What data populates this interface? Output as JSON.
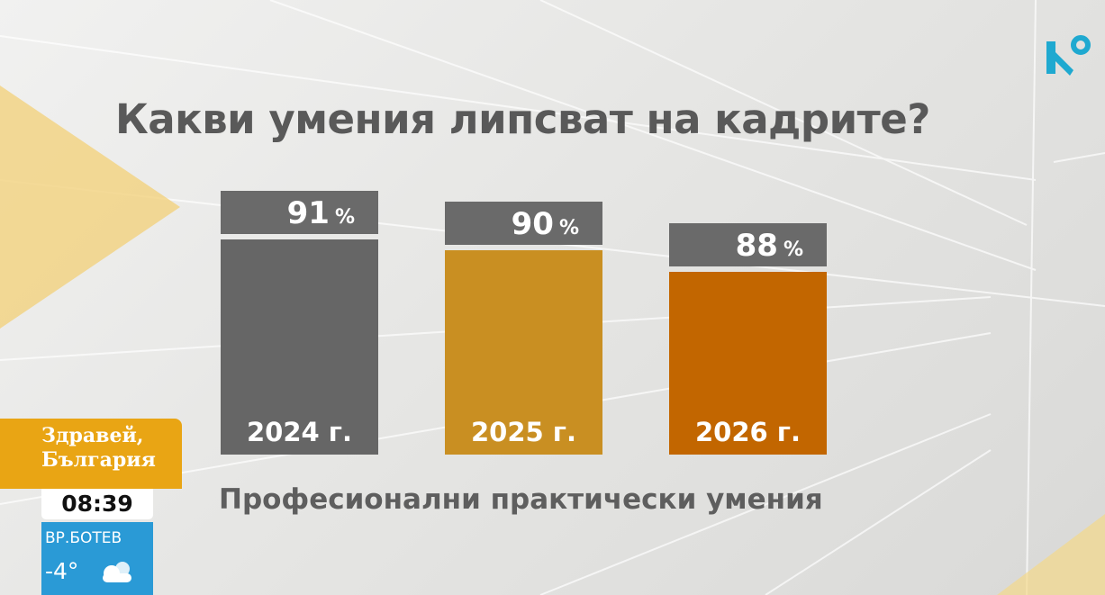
{
  "chart_data": {
    "type": "bar",
    "title": "Какви умения липсват на кадрите?",
    "subtitle": "Професионални практически умения",
    "categories": [
      "2024 г.",
      "2025 г.",
      "2026 г."
    ],
    "values": [
      91,
      90,
      88
    ],
    "unit": "%",
    "colors": [
      "#666666",
      "#c98f22",
      "#c26600"
    ]
  },
  "overlay": {
    "show_name": "Здравей, България",
    "time": "08:39",
    "weather_location": "ВР.БОТЕВ",
    "temperature": "-4°",
    "weather_icon": "cloud-icon",
    "channel_logo": "nova-logo"
  }
}
